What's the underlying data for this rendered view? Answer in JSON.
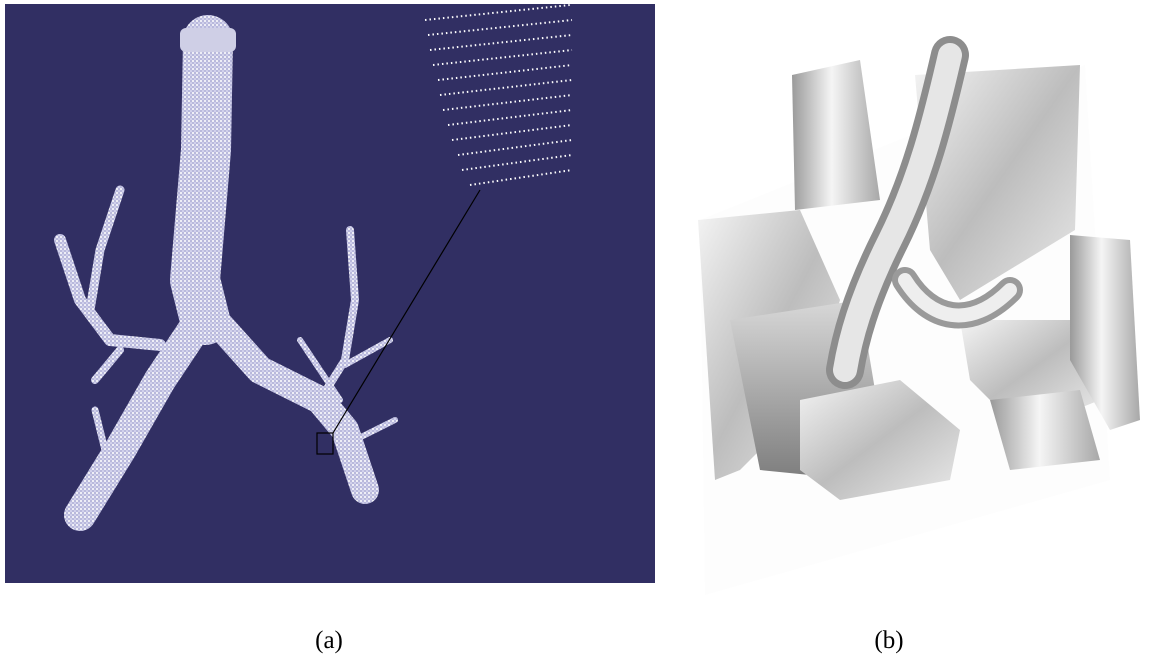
{
  "figure": {
    "panels": [
      {
        "caption": "(a)"
      },
      {
        "caption": "(b)"
      }
    ]
  }
}
